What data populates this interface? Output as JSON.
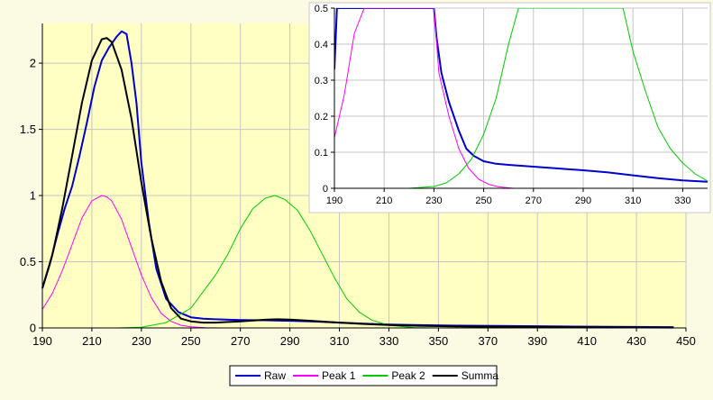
{
  "chart_data": [
    {
      "type": "line",
      "title": "",
      "xlabel": "",
      "ylabel": "",
      "xlim": [
        190,
        450
      ],
      "ylim": [
        0,
        2.3
      ],
      "x_ticks": [
        "190",
        "210",
        "230",
        "250",
        "270",
        "290",
        "310",
        "330",
        "350",
        "370",
        "390",
        "410",
        "430",
        "450"
      ],
      "y_ticks": [
        "0",
        "0.5",
        "1",
        "1.5",
        "2"
      ],
      "grid": true,
      "legend_position": "bottom-center",
      "series": [
        {
          "name": "Raw",
          "color": "#0000cc",
          "x": [
            190,
            193,
            196,
            199,
            202,
            205,
            208,
            211,
            214,
            217,
            220,
            222,
            224,
            226,
            228,
            230,
            233,
            236,
            240,
            245,
            250,
            255,
            260,
            270,
            280,
            290,
            300,
            310,
            320,
            330,
            340,
            360,
            380,
            400,
            420,
            445
          ],
          "y": [
            0.3,
            0.48,
            0.7,
            0.9,
            1.07,
            1.3,
            1.55,
            1.82,
            2.02,
            2.12,
            2.2,
            2.24,
            2.22,
            2.0,
            1.7,
            1.25,
            0.8,
            0.45,
            0.22,
            0.12,
            0.08,
            0.07,
            0.065,
            0.06,
            0.058,
            0.054,
            0.048,
            0.04,
            0.032,
            0.026,
            0.022,
            0.017,
            0.014,
            0.011,
            0.009,
            0.006
          ]
        },
        {
          "name": "Peak 1",
          "color": "#ff00ff",
          "x": [
            190,
            194,
            198,
            202,
            206,
            210,
            214,
            216,
            218,
            222,
            226,
            230,
            234,
            238,
            242,
            246,
            250,
            256,
            262
          ],
          "y": [
            0.14,
            0.26,
            0.43,
            0.63,
            0.83,
            0.96,
            1.0,
            0.99,
            0.96,
            0.82,
            0.61,
            0.4,
            0.23,
            0.11,
            0.05,
            0.02,
            0.008,
            0.002,
            0.0
          ]
        },
        {
          "name": "Peak 2",
          "color": "#00cc00",
          "x": [
            220,
            230,
            240,
            250,
            260,
            265,
            270,
            275,
            280,
            284,
            288,
            293,
            298,
            303,
            308,
            313,
            318,
            323,
            330,
            340,
            350
          ],
          "y": [
            0.0,
            0.005,
            0.04,
            0.15,
            0.4,
            0.56,
            0.75,
            0.9,
            0.98,
            1.0,
            0.97,
            0.89,
            0.74,
            0.56,
            0.38,
            0.22,
            0.12,
            0.06,
            0.02,
            0.003,
            0.0
          ]
        },
        {
          "name": "Summa",
          "color": "#000000",
          "x": [
            190,
            194,
            198,
            202,
            206,
            210,
            214,
            216,
            218,
            222,
            226,
            230,
            234,
            238,
            242,
            246,
            250,
            255,
            260,
            270,
            280,
            285,
            290,
            300,
            310,
            320,
            330,
            340,
            360,
            380,
            400,
            420,
            445
          ],
          "y": [
            0.3,
            0.55,
            0.9,
            1.3,
            1.7,
            2.02,
            2.18,
            2.19,
            2.16,
            1.95,
            1.58,
            1.1,
            0.68,
            0.35,
            0.15,
            0.07,
            0.05,
            0.04,
            0.04,
            0.05,
            0.062,
            0.065,
            0.063,
            0.052,
            0.04,
            0.03,
            0.022,
            0.017,
            0.011,
            0.008,
            0.006,
            0.004,
            0.003
          ]
        }
      ]
    },
    {
      "type": "line",
      "title": "",
      "xlabel": "",
      "ylabel": "",
      "xlim": [
        190,
        340
      ],
      "ylim": [
        0,
        0.5
      ],
      "x_ticks": [
        "190",
        "210",
        "230",
        "250",
        "270",
        "290",
        "310",
        "330"
      ],
      "y_ticks": [
        "0",
        "0.1",
        "0.2",
        "0.3",
        "0.4",
        "0.5"
      ],
      "grid": true,
      "series": [
        {
          "name": "Raw",
          "color": "#0000cc",
          "x": [
            190,
            191,
            230,
            231,
            233,
            236,
            240,
            243,
            246,
            250,
            255,
            260,
            270,
            280,
            290,
            300,
            310,
            320,
            330,
            340
          ],
          "y": [
            0.33,
            0.5,
            0.5,
            0.42,
            0.32,
            0.24,
            0.16,
            0.11,
            0.09,
            0.075,
            0.068,
            0.065,
            0.06,
            0.055,
            0.05,
            0.044,
            0.036,
            0.028,
            0.022,
            0.018
          ]
        },
        {
          "name": "Peak 1",
          "color": "#ff00ff",
          "x": [
            190,
            194,
            198,
            202,
            230,
            232,
            236,
            240,
            244,
            248,
            252,
            256,
            262
          ],
          "y": [
            0.14,
            0.26,
            0.43,
            0.5,
            0.5,
            0.32,
            0.2,
            0.11,
            0.055,
            0.025,
            0.011,
            0.004,
            0.0
          ]
        },
        {
          "name": "Peak 2",
          "color": "#00cc00",
          "x": [
            220,
            230,
            235,
            240,
            245,
            250,
            255,
            260,
            264,
            268,
            306,
            310,
            315,
            320,
            325,
            330,
            335,
            340
          ],
          "y": [
            0.0,
            0.005,
            0.015,
            0.04,
            0.08,
            0.15,
            0.25,
            0.4,
            0.5,
            0.5,
            0.5,
            0.38,
            0.27,
            0.17,
            0.11,
            0.07,
            0.04,
            0.02
          ]
        }
      ]
    }
  ]
}
